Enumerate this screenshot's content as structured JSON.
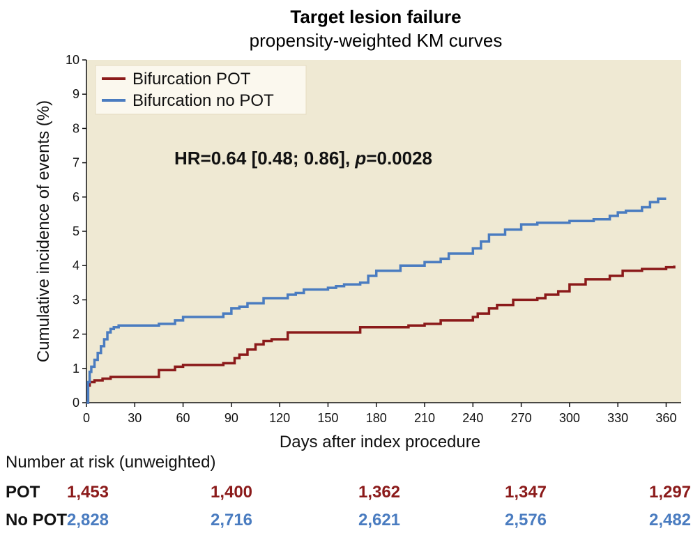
{
  "chart_data": {
    "type": "line",
    "title": "Target lesion failure",
    "subtitle": "propensity-weighted KM curves",
    "xlabel": "Days after index procedure",
    "ylabel": "Cumulative incidence of events (%)",
    "xlim": [
      0,
      365
    ],
    "ylim": [
      0,
      10
    ],
    "xticks": [
      0,
      30,
      60,
      90,
      120,
      150,
      180,
      210,
      240,
      270,
      300,
      330,
      360
    ],
    "yticks": [
      0,
      1,
      2,
      3,
      4,
      5,
      6,
      7,
      8,
      9,
      10
    ],
    "legend_position": "top-left",
    "annotation_prefix": "HR=0.64 [0.48; 0.86], ",
    "annotation_p": "p",
    "annotation_suffix": "=0.0028",
    "series": [
      {
        "name": "Bifurcation POT",
        "color": "#8b1a1a",
        "x": [
          0,
          1,
          2,
          5,
          10,
          15,
          40,
          45,
          55,
          60,
          85,
          92,
          95,
          100,
          105,
          110,
          115,
          125,
          170,
          200,
          210,
          220,
          240,
          243,
          250,
          255,
          265,
          270,
          280,
          285,
          293,
          300,
          310,
          325,
          333,
          345,
          355,
          360,
          365
        ],
        "y": [
          0,
          0.5,
          0.6,
          0.65,
          0.7,
          0.75,
          0.75,
          0.95,
          1.05,
          1.1,
          1.15,
          1.3,
          1.4,
          1.55,
          1.7,
          1.8,
          1.85,
          2.05,
          2.2,
          2.25,
          2.3,
          2.4,
          2.5,
          2.6,
          2.75,
          2.85,
          3.0,
          3.0,
          3.05,
          3.15,
          3.25,
          3.45,
          3.6,
          3.7,
          3.85,
          3.9,
          3.9,
          3.95,
          4.0
        ]
      },
      {
        "name": "Bifurcation no POT",
        "color": "#4a7cc0",
        "x": [
          0,
          1,
          2,
          3,
          5,
          7,
          9,
          11,
          13,
          15,
          17,
          20,
          30,
          45,
          55,
          60,
          70,
          85,
          90,
          95,
          100,
          110,
          125,
          130,
          135,
          145,
          150,
          155,
          160,
          170,
          175,
          180,
          195,
          210,
          220,
          225,
          240,
          245,
          250,
          260,
          270,
          280,
          300,
          315,
          325,
          330,
          335,
          345,
          350,
          355,
          360
        ],
        "y": [
          0,
          0.6,
          0.9,
          1.05,
          1.25,
          1.45,
          1.65,
          1.85,
          2.05,
          2.15,
          2.2,
          2.25,
          2.25,
          2.3,
          2.4,
          2.5,
          2.5,
          2.6,
          2.75,
          2.8,
          2.9,
          3.05,
          3.15,
          3.2,
          3.3,
          3.3,
          3.35,
          3.4,
          3.45,
          3.5,
          3.7,
          3.85,
          4.0,
          4.1,
          4.2,
          4.35,
          4.5,
          4.7,
          4.9,
          5.05,
          5.2,
          5.25,
          5.3,
          5.35,
          5.45,
          5.55,
          5.6,
          5.7,
          5.85,
          5.95,
          5.95
        ]
      }
    ]
  },
  "risk_table": {
    "title": "Number at risk (unweighted)",
    "rows": [
      {
        "label": "POT",
        "color": "#8b1a1a",
        "values": [
          "1,453",
          "1,400",
          "1,362",
          "1,347",
          "1,297"
        ]
      },
      {
        "label": "No POT",
        "color": "#4a7cc0",
        "values": [
          "2,828",
          "2,716",
          "2,621",
          "2,576",
          "2,482"
        ]
      }
    ]
  }
}
